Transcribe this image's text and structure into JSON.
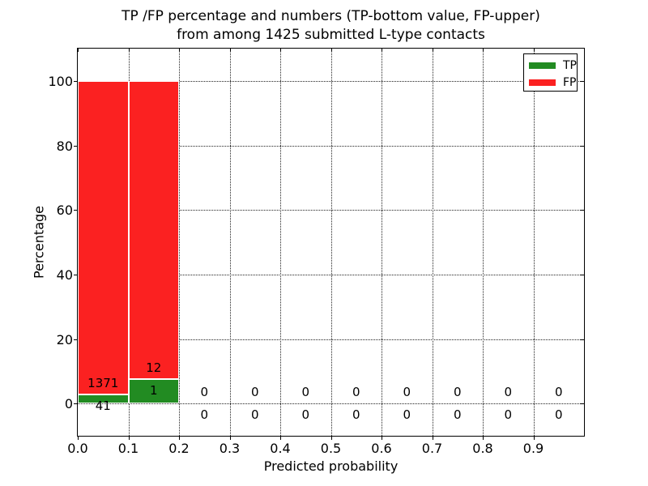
{
  "chart_data": {
    "type": "bar",
    "stacked": true,
    "title": "TP /FP percentage and numbers (TP-bottom value, FP-upper)",
    "subtitle": "from among 1425 submitted L-type contacts",
    "xlabel": "Predicted probability",
    "ylabel": "Percentage",
    "total_submitted_contacts": 1425,
    "xlim": [
      0.0,
      1.0
    ],
    "ylim": [
      -10,
      110
    ],
    "grid": "dotted",
    "xticks": [
      {
        "v": 0.0,
        "label": "0.0"
      },
      {
        "v": 0.1,
        "label": "0.1"
      },
      {
        "v": 0.2,
        "label": "0.2"
      },
      {
        "v": 0.3,
        "label": "0.3"
      },
      {
        "v": 0.4,
        "label": "0.4"
      },
      {
        "v": 0.5,
        "label": "0.5"
      },
      {
        "v": 0.6,
        "label": "0.6"
      },
      {
        "v": 0.7,
        "label": "0.7"
      },
      {
        "v": 0.8,
        "label": "0.8"
      },
      {
        "v": 0.9,
        "label": "0.9"
      }
    ],
    "yticks": [
      {
        "v": 0,
        "label": "0"
      },
      {
        "v": 20,
        "label": "20"
      },
      {
        "v": 40,
        "label": "40"
      },
      {
        "v": 60,
        "label": "60"
      },
      {
        "v": 80,
        "label": "80"
      },
      {
        "v": 100,
        "label": "100"
      }
    ],
    "legend": {
      "position": "upper-right",
      "entries": [
        {
          "label": "TP",
          "color": "#228b22"
        },
        {
          "label": "FP",
          "color": "#fb2121"
        }
      ]
    },
    "bins": [
      {
        "x0": 0.0,
        "x1": 0.1,
        "tp_count": 41,
        "fp_count": 1371,
        "tp_pct": 2.9,
        "fp_pct": 97.1
      },
      {
        "x0": 0.1,
        "x1": 0.2,
        "tp_count": 1,
        "fp_count": 12,
        "tp_pct": 7.69,
        "fp_pct": 92.31
      },
      {
        "x0": 0.2,
        "x1": 0.3,
        "tp_count": 0,
        "fp_count": 0,
        "tp_pct": 0,
        "fp_pct": 0
      },
      {
        "x0": 0.3,
        "x1": 0.4,
        "tp_count": 0,
        "fp_count": 0,
        "tp_pct": 0,
        "fp_pct": 0
      },
      {
        "x0": 0.4,
        "x1": 0.5,
        "tp_count": 0,
        "fp_count": 0,
        "tp_pct": 0,
        "fp_pct": 0
      },
      {
        "x0": 0.5,
        "x1": 0.6,
        "tp_count": 0,
        "fp_count": 0,
        "tp_pct": 0,
        "fp_pct": 0
      },
      {
        "x0": 0.6,
        "x1": 0.7,
        "tp_count": 0,
        "fp_count": 0,
        "tp_pct": 0,
        "fp_pct": 0
      },
      {
        "x0": 0.7,
        "x1": 0.8,
        "tp_count": 0,
        "fp_count": 0,
        "tp_pct": 0,
        "fp_pct": 0
      },
      {
        "x0": 0.8,
        "x1": 0.9,
        "tp_count": 0,
        "fp_count": 0,
        "tp_pct": 0,
        "fp_pct": 0
      },
      {
        "x0": 0.9,
        "x1": 1.0,
        "tp_count": 0,
        "fp_count": 0,
        "tp_pct": 0,
        "fp_pct": 0
      }
    ]
  }
}
